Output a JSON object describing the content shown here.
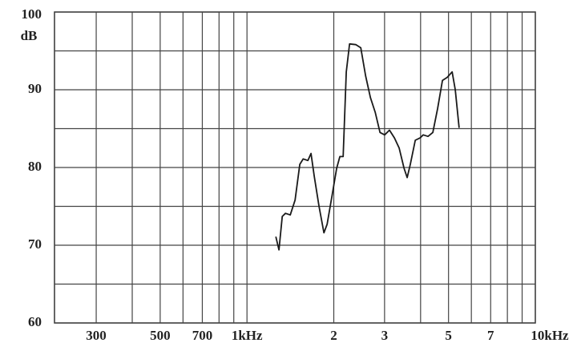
{
  "chart_data": {
    "type": "line",
    "y_label": "dB",
    "xscale": "log",
    "x": [
      1259,
      1291,
      1325,
      1360,
      1413,
      1468,
      1525,
      1566,
      1626,
      1668,
      1711,
      1778,
      1848,
      1896,
      1971,
      2047,
      2100,
      2155,
      2210,
      2268,
      2387,
      2482,
      2578,
      2679,
      2784,
      2893,
      3003,
      3120,
      3247,
      3371,
      3505,
      3593,
      3684,
      3834,
      3984,
      4084,
      4245,
      4410,
      4583,
      4763,
      4951,
      5145,
      5275,
      5440
    ],
    "values": [
      71.1,
      69.4,
      73.7,
      74.1,
      73.9,
      75.8,
      80.4,
      81.1,
      80.9,
      81.8,
      78.9,
      75.0,
      71.6,
      72.7,
      76.3,
      79.9,
      81.4,
      81.4,
      92.3,
      95.9,
      95.8,
      95.4,
      91.8,
      89.0,
      87.1,
      84.5,
      84.2,
      84.8,
      83.8,
      82.5,
      79.9,
      78.7,
      80.4,
      83.5,
      83.8,
      84.2,
      84.0,
      84.5,
      87.6,
      91.2,
      91.6,
      92.3,
      90.0,
      85.1
    ],
    "color": "#1a1a1a",
    "xlim": [
      215,
      10000
    ],
    "xticks": [
      300,
      500,
      700,
      {
        "value": 1000,
        "label": "1kHz"
      },
      {
        "value": 2000,
        "label": "2"
      },
      {
        "value": 3000,
        "label": "3"
      },
      {
        "value": 5000,
        "label": "5"
      },
      {
        "value": 7000,
        "label": "7"
      },
      {
        "value": 10000,
        "label": "10kHz"
      }
    ],
    "xminor": [
      400,
      600,
      800,
      900,
      4000,
      6000,
      8000,
      9000
    ],
    "ylim": [
      60,
      100
    ],
    "yticks": [
      60,
      70,
      80,
      90,
      100
    ],
    "yminor": [
      65,
      75,
      85,
      95
    ],
    "grid": true
  }
}
